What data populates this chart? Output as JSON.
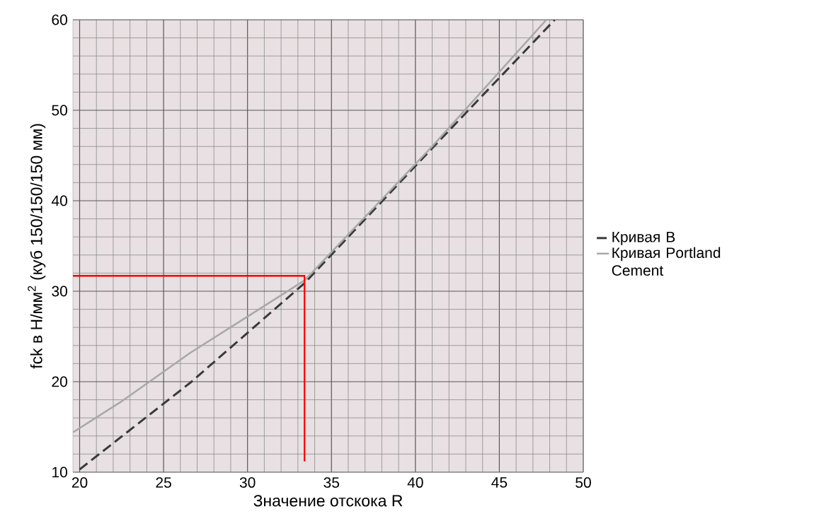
{
  "chart_data": {
    "type": "line",
    "xlabel": "Значение отскока R",
    "ylabel": "fck в Н/мм$^{2}$ (куб 150/150/150 мм)",
    "xlim": [
      19.6,
      50
    ],
    "ylim": [
      10,
      60
    ],
    "xticks": [
      20,
      25,
      30,
      35,
      40,
      45,
      50
    ],
    "yticks": [
      10,
      20,
      30,
      40,
      50,
      60
    ],
    "grid": true,
    "legend": "right",
    "series": [
      {
        "name": "Кривая B",
        "color": "#3a3a3a",
        "line_style": "dashed",
        "x": [
          20,
          26.6,
          33.4,
          41,
          48.3
        ],
        "values": [
          10.3,
          19.9,
          30.9,
          45.8,
          60
        ]
      },
      {
        "name": "Кривая Portland Cement",
        "color": "#a8a8a8",
        "line_style": "solid",
        "x": [
          19.6,
          22.4,
          26.6,
          30,
          33.4,
          41,
          47.8
        ],
        "values": [
          14.4,
          17.7,
          23.2,
          27.2,
          31.2,
          46,
          60
        ]
      },
      {
        "color": "#ff0000",
        "line_style": "solid",
        "x": [
          19.6,
          33.4,
          33.4
        ],
        "values": [
          31.7,
          31.7,
          11.2
        ]
      }
    ]
  }
}
